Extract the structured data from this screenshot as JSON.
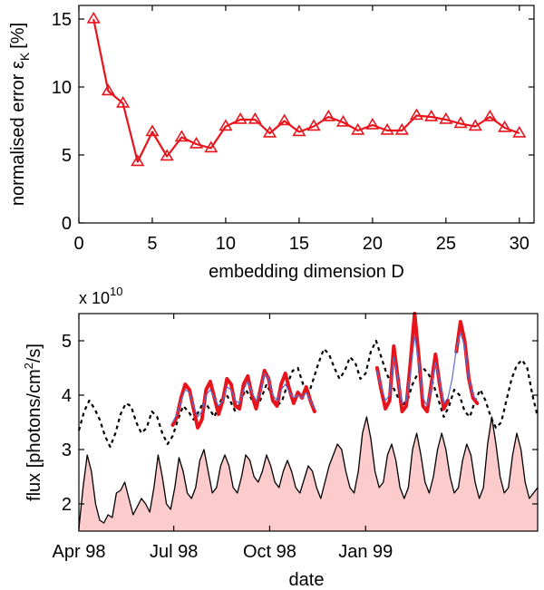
{
  "chart_data": [
    {
      "type": "line",
      "title": "",
      "xlabel": "embedding dimension D",
      "ylabel_main": "normalised error ε",
      "ylabel_sub": "K",
      "ylabel_unit": "[%]",
      "xlim": [
        0,
        31
      ],
      "ylim": [
        0,
        16
      ],
      "xticks": [
        0,
        5,
        10,
        15,
        20,
        25,
        30
      ],
      "yticks": [
        0,
        5,
        10,
        15
      ],
      "x": [
        1,
        2,
        3,
        4,
        5,
        6,
        7,
        8,
        9,
        10,
        11,
        12,
        13,
        14,
        15,
        16,
        17,
        18,
        19,
        20,
        21,
        22,
        23,
        24,
        25,
        26,
        27,
        28,
        29,
        30
      ],
      "series": [
        {
          "name": "normalised error",
          "color": "#e8141c",
          "marker": "triangle",
          "values": [
            15.0,
            9.7,
            8.8,
            4.5,
            6.7,
            4.9,
            6.3,
            5.8,
            5.5,
            7.1,
            7.6,
            7.6,
            6.6,
            7.5,
            6.7,
            7.1,
            7.8,
            7.4,
            6.8,
            7.2,
            6.8,
            6.8,
            7.9,
            7.8,
            7.6,
            7.3,
            7.1,
            7.8,
            7.0,
            6.6
          ]
        }
      ]
    },
    {
      "type": "line",
      "title": "",
      "xlabel": "date",
      "ylabel_main": "flux [photons/cm",
      "ylabel_sup": "2",
      "ylabel_tail": "/s]",
      "exponent_base": "x 10",
      "exponent_power": "10",
      "xlim": [
        0,
        440
      ],
      "ylim": [
        1.5,
        5.5
      ],
      "xtick_positions": [
        0,
        91,
        183,
        275
      ],
      "xtick_labels": [
        "Apr 98",
        "Jul 98",
        "Oct 98",
        "Jan 99"
      ],
      "yticks": [
        2,
        3,
        4,
        5
      ],
      "colors": {
        "filled": "#fccccc",
        "measured": "#000000",
        "predicted": "#e8141c",
        "model": "#5a6fd0",
        "dotted": "#000000"
      },
      "series": [
        {
          "name": "filled flux",
          "x": [
            0,
            4,
            8,
            12,
            16,
            20,
            24,
            28,
            32,
            36,
            40,
            44,
            48,
            52,
            56,
            60,
            64,
            68,
            72,
            76,
            80,
            84,
            88,
            92,
            96,
            100,
            104,
            108,
            112,
            116,
            120,
            124,
            128,
            132,
            136,
            140,
            144,
            148,
            152,
            156,
            160,
            164,
            168,
            172,
            176,
            180,
            184,
            188,
            192,
            196,
            200,
            204,
            208,
            212,
            216,
            220,
            224,
            228,
            232,
            236,
            240,
            244,
            248,
            252,
            256,
            260,
            264,
            268,
            272,
            276,
            280,
            284,
            288,
            292,
            296,
            300,
            304,
            308,
            312,
            316,
            320,
            324,
            328,
            332,
            336,
            340,
            344,
            348,
            352,
            356,
            360,
            364,
            368,
            372,
            376,
            380,
            384,
            388,
            392,
            396,
            400,
            404,
            408,
            412,
            416,
            420,
            424,
            428,
            432,
            436,
            440
          ],
          "values": [
            1.55,
            2.3,
            2.9,
            2.6,
            2.0,
            1.7,
            1.65,
            1.8,
            1.75,
            2.2,
            2.25,
            2.4,
            2.1,
            1.8,
            1.95,
            2.1,
            2.0,
            1.85,
            2.3,
            2.9,
            2.5,
            2.0,
            1.9,
            2.3,
            2.85,
            2.6,
            2.2,
            2.1,
            2.3,
            2.8,
            3.0,
            2.6,
            2.2,
            2.3,
            2.7,
            2.9,
            2.7,
            2.3,
            2.2,
            2.5,
            2.9,
            2.8,
            2.5,
            2.4,
            2.6,
            2.9,
            2.7,
            2.4,
            2.3,
            2.6,
            2.8,
            2.6,
            2.3,
            2.2,
            2.45,
            2.7,
            2.6,
            2.3,
            2.1,
            2.4,
            2.7,
            2.9,
            3.1,
            3.0,
            2.6,
            2.3,
            2.2,
            2.6,
            3.3,
            3.6,
            3.2,
            2.6,
            2.3,
            2.4,
            2.9,
            3.1,
            2.8,
            2.3,
            2.1,
            2.3,
            3.0,
            3.3,
            2.9,
            2.4,
            2.2,
            2.5,
            3.0,
            3.3,
            3.0,
            2.5,
            2.2,
            2.3,
            2.8,
            3.1,
            2.9,
            2.4,
            2.1,
            2.3,
            3.1,
            3.6,
            3.1,
            2.5,
            2.2,
            2.3,
            2.9,
            3.3,
            3.0,
            2.4,
            2.1,
            2.2,
            2.3
          ]
        },
        {
          "name": "dotted flux",
          "x": [
            0,
            5,
            10,
            15,
            20,
            25,
            30,
            35,
            40,
            45,
            50,
            55,
            60,
            65,
            70,
            75,
            80,
            85,
            90,
            95,
            100,
            105,
            110,
            115,
            120,
            125,
            130,
            135,
            140,
            145,
            150,
            155,
            160,
            165,
            170,
            175,
            180,
            185,
            190,
            195,
            200,
            205,
            210,
            215,
            220,
            225,
            230,
            235,
            240,
            245,
            250,
            255,
            260,
            265,
            270,
            275,
            280,
            285,
            290,
            295,
            300,
            305,
            310,
            315,
            320,
            325,
            330,
            335,
            340,
            345,
            350,
            355,
            360,
            365,
            370,
            375,
            380,
            385,
            390,
            395,
            400,
            405,
            410,
            415,
            420,
            425,
            430,
            435,
            440
          ],
          "values": [
            3.35,
            3.7,
            3.9,
            3.75,
            3.55,
            3.25,
            3.05,
            3.3,
            3.65,
            3.85,
            3.8,
            3.5,
            3.3,
            3.4,
            3.7,
            3.6,
            3.3,
            3.1,
            3.25,
            3.55,
            3.8,
            3.7,
            3.55,
            3.7,
            3.9,
            3.75,
            3.6,
            3.85,
            4.05,
            3.9,
            3.7,
            3.9,
            4.1,
            3.95,
            3.75,
            3.95,
            4.2,
            4.0,
            3.8,
            3.9,
            4.2,
            4.45,
            4.5,
            4.2,
            4.0,
            4.3,
            4.6,
            4.85,
            4.75,
            4.5,
            4.3,
            4.45,
            4.7,
            4.6,
            4.3,
            4.4,
            4.8,
            5.0,
            4.7,
            4.4,
            4.2,
            4.0,
            3.8,
            3.9,
            4.2,
            4.4,
            4.5,
            4.4,
            4.2,
            3.9,
            3.6,
            3.8,
            4.1,
            4.0,
            3.7,
            3.6,
            3.9,
            4.1,
            3.9,
            3.6,
            3.4,
            3.5,
            3.9,
            4.3,
            4.55,
            4.65,
            4.5,
            4.0,
            3.6
          ]
        },
        {
          "name": "predicted flux (segment 1)",
          "x": [
            90,
            94,
            98,
            102,
            106,
            110,
            114,
            118,
            122,
            126,
            130,
            134,
            138,
            142,
            146,
            150,
            154,
            158,
            162,
            166,
            170,
            174,
            178,
            182,
            186,
            190,
            194,
            198,
            202,
            206,
            210,
            214,
            218,
            222,
            226
          ],
          "values": [
            3.45,
            3.6,
            3.95,
            4.2,
            4.1,
            3.75,
            3.4,
            3.55,
            4.1,
            4.25,
            3.95,
            3.65,
            3.9,
            4.3,
            4.2,
            3.8,
            3.75,
            4.2,
            4.35,
            4.0,
            3.75,
            4.1,
            4.45,
            4.3,
            3.9,
            3.8,
            4.2,
            4.4,
            4.1,
            3.85,
            4.05,
            3.95,
            4.15,
            3.9,
            3.7
          ]
        },
        {
          "name": "model flux (segment 1)",
          "x": [
            90,
            94,
            98,
            102,
            106,
            110,
            114,
            118,
            122,
            126,
            130,
            134,
            138,
            142,
            146,
            150,
            154,
            158,
            162,
            166,
            170,
            174,
            178,
            182,
            186,
            190,
            194,
            198,
            202,
            206,
            210,
            214,
            218,
            222,
            226
          ],
          "values": [
            3.5,
            3.65,
            3.9,
            4.1,
            4.05,
            3.8,
            3.6,
            3.7,
            4.0,
            4.1,
            3.95,
            3.8,
            3.9,
            4.15,
            4.1,
            3.9,
            3.85,
            4.1,
            4.25,
            4.05,
            3.9,
            4.05,
            4.4,
            4.3,
            4.0,
            3.9,
            4.1,
            4.2,
            4.05,
            3.95,
            4.0,
            3.95,
            4.05,
            3.9,
            3.75
          ]
        },
        {
          "name": "predicted flux (segment 2)",
          "x": [
            286,
            290,
            294,
            298,
            302,
            306,
            310,
            314,
            318,
            322,
            326,
            330,
            334,
            338,
            342,
            346,
            350,
            354
          ],
          "values": [
            4.5,
            4.1,
            3.75,
            3.9,
            4.9,
            4.3,
            3.7,
            3.8,
            4.6,
            5.5,
            4.7,
            3.8,
            3.7,
            4.2,
            4.75,
            4.2,
            3.75,
            3.9
          ]
        },
        {
          "name": "predicted flux (segment 3)",
          "x": [
            362,
            366,
            370,
            374,
            378,
            382
          ],
          "values": [
            4.8,
            5.35,
            5.0,
            4.3,
            3.95,
            3.85
          ]
        },
        {
          "name": "model flux (segment 2)",
          "x": [
            286,
            290,
            294,
            298,
            302,
            306,
            310,
            314,
            318,
            322,
            326,
            330,
            334,
            338,
            342,
            346,
            350,
            354,
            358,
            362,
            366,
            370,
            374,
            378,
            382
          ],
          "values": [
            4.45,
            4.15,
            3.9,
            4.0,
            4.7,
            4.3,
            3.85,
            3.9,
            4.4,
            5.1,
            4.6,
            3.95,
            3.8,
            4.15,
            4.6,
            4.25,
            3.85,
            3.95,
            4.3,
            4.85,
            5.15,
            4.9,
            4.3,
            4.0,
            3.9
          ]
        }
      ]
    }
  ]
}
